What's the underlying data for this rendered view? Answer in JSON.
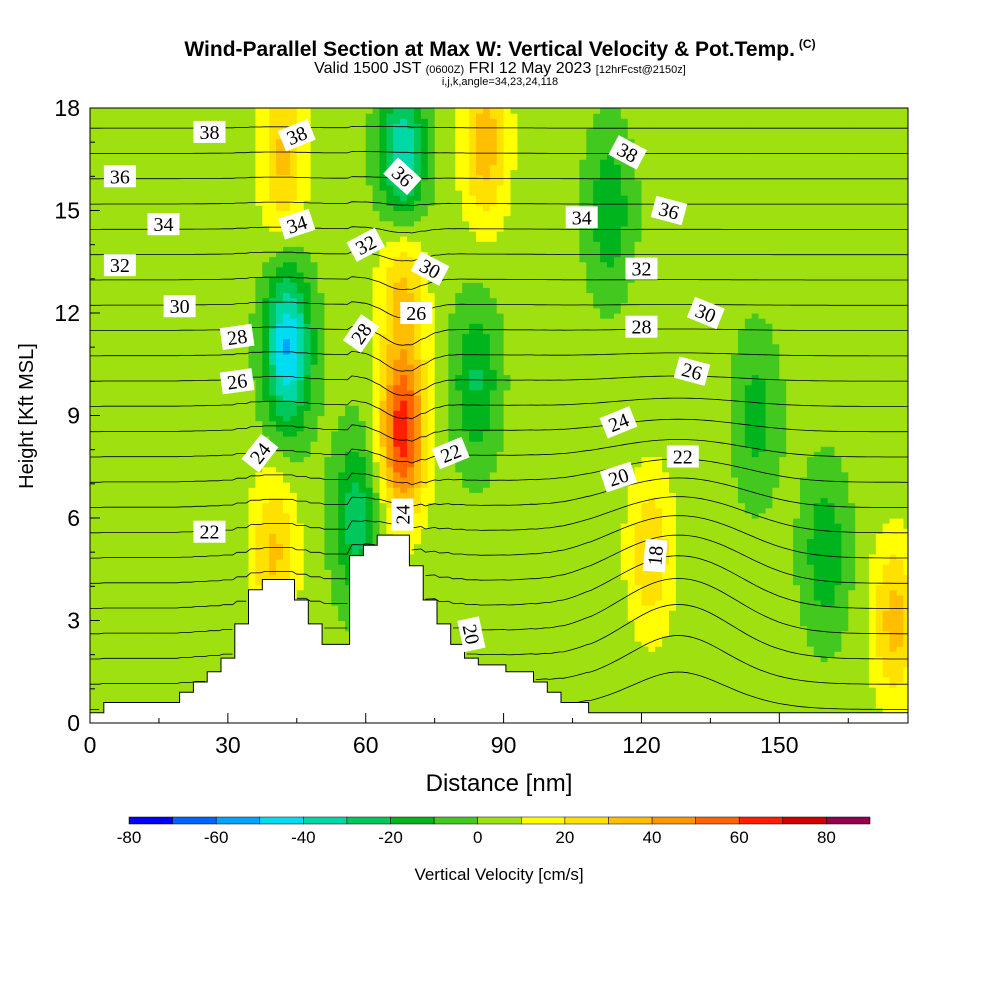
{
  "chart_data": {
    "type": "heatmap",
    "title": "Wind-Parallel Section at Max W: Vertical Velocity & Pot.Temp.",
    "title_mark": "(C)",
    "subtitle_valid": "Valid 1500 JST",
    "subtitle_utc": "(0600Z)",
    "subtitle_date": "FRI 12 May 2023",
    "subtitle_fcst": "[12hrFcst@2150z]",
    "indices": "i,j,k,angle=34,23,24,118",
    "xlabel": "Distance [nm]",
    "ylabel": "Height [Kft MSL]",
    "xlim": [
      0,
      178
    ],
    "ylim": [
      0,
      18
    ],
    "xticks": [
      0,
      30,
      60,
      90,
      120,
      150
    ],
    "yticks": [
      0,
      3,
      6,
      9,
      12,
      15,
      18
    ],
    "grid": false,
    "colorbar": {
      "label": "Vertical Velocity [cm/s]",
      "ticks": [
        -80,
        -60,
        -40,
        -20,
        0,
        20,
        40,
        60,
        80
      ],
      "bounds": [
        -80,
        -70,
        -60,
        -50,
        -40,
        -30,
        -20,
        -10,
        0,
        10,
        20,
        30,
        40,
        50,
        60,
        70,
        80,
        90
      ],
      "colors": [
        "#0000ff",
        "#0066ff",
        "#00a4ff",
        "#00dcf0",
        "#00d9a7",
        "#00c85a",
        "#00b41e",
        "#42c81e",
        "#9ee010",
        "#ffff00",
        "#ffe100",
        "#ffbe00",
        "#ff9600",
        "#ff6400",
        "#ff1e00",
        "#d20000",
        "#960050",
        "#64008c"
      ]
    },
    "w_features": [
      {
        "x": 43,
        "z": 11,
        "w": -55
      },
      {
        "x": 68,
        "z": 16.5,
        "w": -45
      },
      {
        "x": 68,
        "z": 8.5,
        "w": 62
      },
      {
        "x": 68,
        "z": 13,
        "w": 30
      },
      {
        "x": 42,
        "z": 16.5,
        "w": 28
      },
      {
        "x": 40,
        "z": 5,
        "w": 28
      },
      {
        "x": 86,
        "z": 17,
        "w": 32
      },
      {
        "x": 122,
        "z": 5,
        "w": 25
      },
      {
        "x": 58,
        "z": 6,
        "w": -30
      },
      {
        "x": 84,
        "z": 10,
        "w": -25
      },
      {
        "x": 113,
        "z": 15,
        "w": -22
      },
      {
        "x": 160,
        "z": 5,
        "w": -22
      },
      {
        "x": 145,
        "z": 9,
        "w": -18
      },
      {
        "x": 175,
        "z": 3,
        "w": 30
      }
    ],
    "contour_labels": [
      {
        "text": "38",
        "x": 26,
        "z": 17.3,
        "rot": 0
      },
      {
        "text": "38",
        "x": 45,
        "z": 17.2,
        "rot": -22
      },
      {
        "text": "38",
        "x": 117,
        "z": 16.7,
        "rot": 28
      },
      {
        "text": "36",
        "x": 6.5,
        "z": 16.0,
        "rot": 0
      },
      {
        "text": "36",
        "x": 68,
        "z": 16.0,
        "rot": 42
      },
      {
        "text": "36",
        "x": 126,
        "z": 15.0,
        "rot": 15
      },
      {
        "text": "34",
        "x": 16,
        "z": 14.6,
        "rot": 0
      },
      {
        "text": "34",
        "x": 45,
        "z": 14.6,
        "rot": -18
      },
      {
        "text": "34",
        "x": 107,
        "z": 14.8,
        "rot": 0
      },
      {
        "text": "32",
        "x": 6.5,
        "z": 13.4,
        "rot": 0
      },
      {
        "text": "32",
        "x": 60,
        "z": 14.0,
        "rot": -28
      },
      {
        "text": "32",
        "x": 120,
        "z": 13.3,
        "rot": 0
      },
      {
        "text": "30",
        "x": 19.5,
        "z": 12.2,
        "rot": 0
      },
      {
        "text": "30",
        "x": 74,
        "z": 13.3,
        "rot": 28
      },
      {
        "text": "30",
        "x": 134,
        "z": 12.0,
        "rot": 22
      },
      {
        "text": "28",
        "x": 32,
        "z": 11.3,
        "rot": -8
      },
      {
        "text": "28",
        "x": 59,
        "z": 11.4,
        "rot": -55
      },
      {
        "text": "28",
        "x": 120,
        "z": 11.6,
        "rot": 0
      },
      {
        "text": "26",
        "x": 32,
        "z": 10.0,
        "rot": -8
      },
      {
        "text": "26",
        "x": 71,
        "z": 12.0,
        "rot": 0
      },
      {
        "text": "26",
        "x": 131,
        "z": 10.3,
        "rot": 15
      },
      {
        "text": "24",
        "x": 37,
        "z": 7.9,
        "rot": -52
      },
      {
        "text": "24",
        "x": 115,
        "z": 8.8,
        "rot": -22
      },
      {
        "text": "24",
        "x": 68,
        "z": 6.1,
        "rot": -90
      },
      {
        "text": "22",
        "x": 78.5,
        "z": 7.9,
        "rot": -22
      },
      {
        "text": "22",
        "x": 129,
        "z": 7.8,
        "rot": 0
      },
      {
        "text": "22",
        "x": 26,
        "z": 5.6,
        "rot": 0
      },
      {
        "text": "20",
        "x": 115,
        "z": 7.2,
        "rot": -18
      },
      {
        "text": "20",
        "x": 83,
        "z": 2.6,
        "rot": 78
      },
      {
        "text": "18",
        "x": 123,
        "z": 4.9,
        "rot": -85
      }
    ],
    "terrain": [
      [
        0,
        0.3
      ],
      [
        3,
        0.3
      ],
      [
        3,
        0.6
      ],
      [
        19.5,
        0.6
      ],
      [
        19.5,
        0.9
      ],
      [
        22.5,
        0.9
      ],
      [
        22.5,
        1.2
      ],
      [
        25.5,
        1.2
      ],
      [
        25.5,
        1.5
      ],
      [
        28.5,
        1.5
      ],
      [
        28.5,
        1.9
      ],
      [
        31.5,
        1.9
      ],
      [
        31.5,
        2.9
      ],
      [
        34.5,
        2.9
      ],
      [
        34.5,
        3.9
      ],
      [
        37.5,
        3.9
      ],
      [
        37.5,
        4.2
      ],
      [
        44.5,
        4.2
      ],
      [
        44.5,
        3.6
      ],
      [
        47.5,
        3.6
      ],
      [
        47.5,
        2.9
      ],
      [
        50.5,
        2.9
      ],
      [
        50.5,
        2.3
      ],
      [
        56.5,
        2.3
      ],
      [
        56.5,
        4.9
      ],
      [
        59.5,
        4.9
      ],
      [
        59.5,
        5.2
      ],
      [
        62.5,
        5.2
      ],
      [
        62.5,
        5.5
      ],
      [
        69.5,
        5.5
      ],
      [
        69.5,
        4.6
      ],
      [
        72.5,
        4.6
      ],
      [
        72.5,
        3.6
      ],
      [
        75.5,
        3.6
      ],
      [
        75.5,
        2.9
      ],
      [
        78.5,
        2.9
      ],
      [
        78.5,
        2.3
      ],
      [
        81.5,
        2.3
      ],
      [
        81.5,
        1.9
      ],
      [
        84.5,
        1.9
      ],
      [
        84.5,
        1.7
      ],
      [
        90.5,
        1.7
      ],
      [
        90.5,
        1.5
      ],
      [
        96.5,
        1.5
      ],
      [
        96.5,
        1.2
      ],
      [
        99.5,
        1.2
      ],
      [
        99.5,
        0.9
      ],
      [
        102.5,
        0.9
      ],
      [
        102.5,
        0.6
      ],
      [
        108.5,
        0.6
      ],
      [
        108.5,
        0.3
      ],
      [
        178,
        0.3
      ]
    ]
  }
}
